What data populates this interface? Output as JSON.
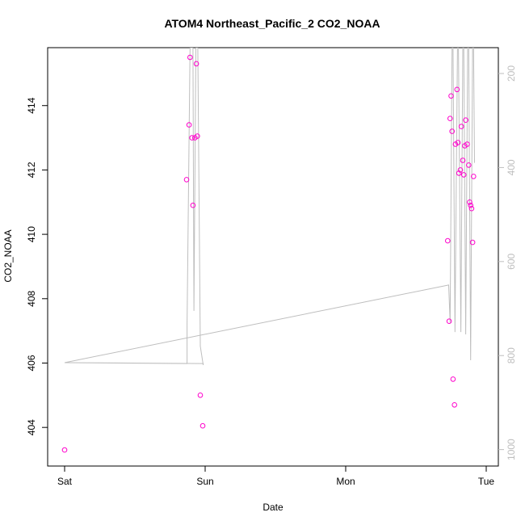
{
  "chart_data": {
    "type": "scatter",
    "title": "ATOM4 Northeast_Pacific_2 CO2_NOAA",
    "xlabel": "Date",
    "ylabel": "CO2_NOAA",
    "x_ticks": [
      {
        "label": "Sat",
        "day": 0
      },
      {
        "label": "Sun",
        "day": 1
      },
      {
        "label": "Mon",
        "day": 2
      },
      {
        "label": "Tue",
        "day": 3
      }
    ],
    "x_range": [
      "Sat 00:00",
      "Tue 03:00"
    ],
    "y_left": {
      "range": [
        402.8,
        415.8
      ],
      "ticks": [
        404,
        406,
        408,
        410,
        412,
        414
      ]
    },
    "y_right": {
      "range": [
        1035,
        145
      ],
      "ticks": [
        200,
        400,
        600,
        800,
        1000
      ],
      "color": "#bebebe"
    },
    "point_color": "#ff00cc",
    "line_color": "#bebebe",
    "series": [
      {
        "type": "scatter",
        "axis": "left",
        "points": [
          {
            "x": "Sat 00:00",
            "y": 403.3
          },
          {
            "x": "Sat 20:50",
            "y": 411.7
          },
          {
            "x": "Sat 21:15",
            "y": 413.4
          },
          {
            "x": "Sat 21:25",
            "y": 415.5
          },
          {
            "x": "Sat 21:45",
            "y": 413.0
          },
          {
            "x": "Sat 21:55",
            "y": 410.9
          },
          {
            "x": "Sat 22:15",
            "y": 413.0
          },
          {
            "x": "Sat 22:30",
            "y": 415.3
          },
          {
            "x": "Sat 22:40",
            "y": 413.05
          },
          {
            "x": "Sat 23:10",
            "y": 405.0
          },
          {
            "x": "Sat 23:35",
            "y": 404.05
          },
          {
            "x": "Mon 17:25",
            "y": 409.8
          },
          {
            "x": "Mon 17:40",
            "y": 407.3
          },
          {
            "x": "Mon 17:50",
            "y": 413.6
          },
          {
            "x": "Mon 18:00",
            "y": 414.3
          },
          {
            "x": "Mon 18:10",
            "y": 413.2
          },
          {
            "x": "Mon 18:20",
            "y": 405.5
          },
          {
            "x": "Mon 18:35",
            "y": 404.7
          },
          {
            "x": "Mon 18:45",
            "y": 412.8
          },
          {
            "x": "Mon 19:00",
            "y": 414.5
          },
          {
            "x": "Mon 19:10",
            "y": 412.85
          },
          {
            "x": "Mon 19:20",
            "y": 411.9
          },
          {
            "x": "Mon 19:35",
            "y": 412.0
          },
          {
            "x": "Mon 19:45",
            "y": 413.35
          },
          {
            "x": "Mon 20:00",
            "y": 412.3
          },
          {
            "x": "Mon 20:10",
            "y": 411.85
          },
          {
            "x": "Mon 20:20",
            "y": 412.75
          },
          {
            "x": "Mon 20:30",
            "y": 413.55
          },
          {
            "x": "Mon 20:45",
            "y": 412.8
          },
          {
            "x": "Mon 21:00",
            "y": 412.15
          },
          {
            "x": "Mon 21:10",
            "y": 411.0
          },
          {
            "x": "Mon 21:20",
            "y": 410.9
          },
          {
            "x": "Mon 21:30",
            "y": 410.8
          },
          {
            "x": "Mon 21:40",
            "y": 409.75
          },
          {
            "x": "Mon 21:50",
            "y": 411.8
          }
        ]
      },
      {
        "type": "line",
        "axis": "right",
        "points": [
          {
            "x": "Sat 00:00",
            "y": 815
          },
          {
            "x": "Sat 20:55",
            "y": 817
          },
          {
            "x": "Sat 20:55",
            "y": 735
          },
          {
            "x": "Sat 21:25",
            "y": 145
          },
          {
            "x": "Sat 21:55",
            "y": 145
          },
          {
            "x": "Sat 22:05",
            "y": 705
          },
          {
            "x": "Sat 22:25",
            "y": 145
          },
          {
            "x": "Sat 22:45",
            "y": 145
          },
          {
            "x": "Sat 23:10",
            "y": 780
          },
          {
            "x": "Sat 23:40",
            "y": 820
          },
          {
            "x": "Sat 23:40",
            "y": 820
          },
          {
            "x": "Sat 23:40",
            "y": 817
          },
          {
            "x": "Sat 00:00",
            "y": 815
          }
        ]
      },
      {
        "type": "line",
        "axis": "right",
        "points": [
          {
            "x": "Sat 00:00",
            "y": 815
          },
          {
            "x": "Mon 17:35",
            "y": 650
          },
          {
            "x": "Mon 17:35",
            "y": 650
          },
          {
            "x": "Mon 17:50",
            "y": 730
          },
          {
            "x": "Mon 18:10",
            "y": 145
          },
          {
            "x": "Mon 18:20",
            "y": 145
          },
          {
            "x": "Mon 18:40",
            "y": 750
          },
          {
            "x": "Mon 19:05",
            "y": 145
          },
          {
            "x": "Mon 19:15",
            "y": 145
          },
          {
            "x": "Mon 19:40",
            "y": 750
          },
          {
            "x": "Mon 20:00",
            "y": 145
          },
          {
            "x": "Mon 20:10",
            "y": 145
          },
          {
            "x": "Mon 20:30",
            "y": 755
          },
          {
            "x": "Mon 20:50",
            "y": 145
          },
          {
            "x": "Mon 21:00",
            "y": 145
          },
          {
            "x": "Mon 21:20",
            "y": 810
          },
          {
            "x": "Mon 21:40",
            "y": 145
          },
          {
            "x": "Mon 21:50",
            "y": 145
          },
          {
            "x": "Mon 22:00",
            "y": 390
          }
        ]
      }
    ]
  }
}
